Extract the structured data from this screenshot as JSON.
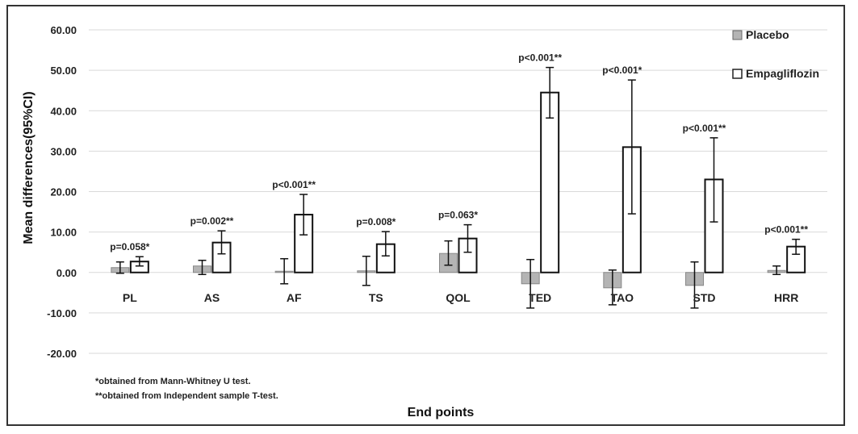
{
  "chart_data": {
    "type": "bar",
    "xlabel": "End points",
    "ylabel": "Mean differences(95%CI)",
    "ylim": [
      -20,
      60
    ],
    "yticks": [
      "60.00",
      "50.00",
      "40.00",
      "30.00",
      "20.00",
      "10.00",
      "0.00",
      "-10.00",
      "-20.00"
    ],
    "grid": true,
    "legend_position": "top-right",
    "categories": [
      "PL",
      "AS",
      "AF",
      "TS",
      "QOL",
      "TED",
      "TAO",
      "STD",
      "HRR"
    ],
    "series": [
      {
        "name": "Placebo",
        "color": "#b4b4b4",
        "values": [
          1.2,
          1.6,
          0.3,
          0.4,
          4.7,
          -2.8,
          -3.8,
          -3.2,
          0.5
        ],
        "ci_low": [
          -0.2,
          -0.5,
          -2.8,
          -3.2,
          1.8,
          -8.8,
          -8.0,
          -8.8,
          -0.5
        ],
        "ci_high": [
          2.6,
          3.0,
          3.4,
          4.0,
          7.8,
          3.2,
          0.6,
          2.6,
          1.6
        ]
      },
      {
        "name": "Empagliflozin",
        "color": "#ffffff",
        "values": [
          2.7,
          7.4,
          14.3,
          7.0,
          8.4,
          44.5,
          31.0,
          23.0,
          6.4
        ],
        "ci_low": [
          1.6,
          4.6,
          9.3,
          4.1,
          5.0,
          38.2,
          14.5,
          12.5,
          4.5
        ],
        "ci_high": [
          3.9,
          10.3,
          19.3,
          10.1,
          11.8,
          50.7,
          47.6,
          33.3,
          8.2
        ]
      }
    ],
    "annotations": [
      "p=0.058*",
      "p=0.002**",
      "p<0.001**",
      "p=0.008*",
      "p=0.063*",
      "p<0.001**",
      "p<0.001*",
      "p<0.001**",
      "p<0.001**"
    ],
    "footnotes": [
      "*obtained from Mann-Whitney U test.",
      "**obtained from Independent sample T-test."
    ]
  }
}
